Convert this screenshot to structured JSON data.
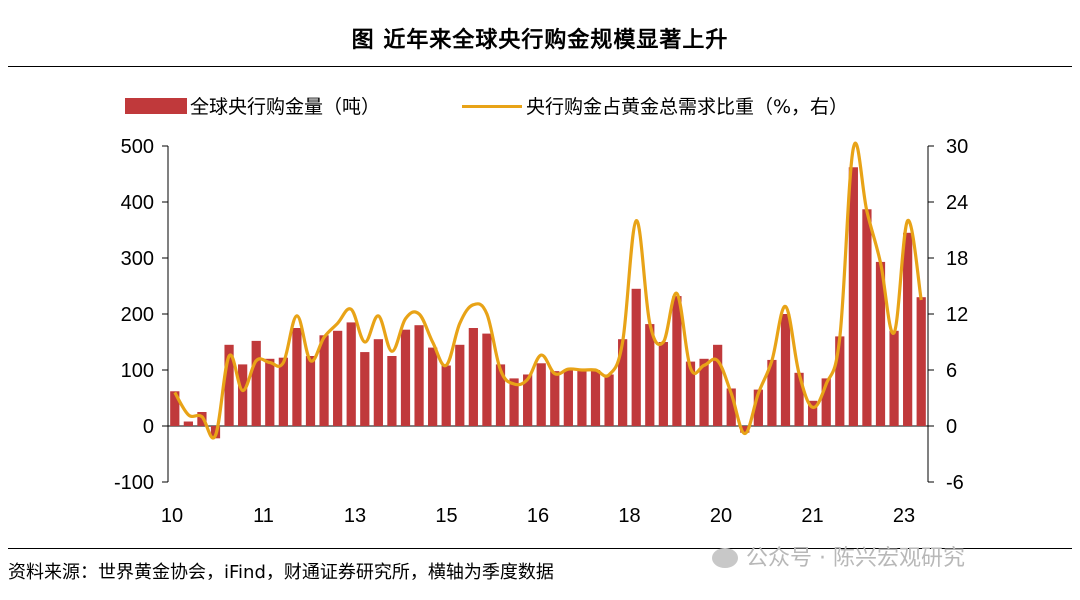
{
  "header": {
    "title": "图  近年来全球央行购金规模显著上升"
  },
  "footer": {
    "source": "资料来源：世界黄金协会，iFind，财通证券研究所，横轴为季度数据",
    "watermark": "公众号 · 陈兴宏观研究"
  },
  "chart_data": {
    "type": "bar",
    "x_tick_labels": [
      "10",
      "11",
      "13",
      "15",
      "16",
      "18",
      "20",
      "21",
      "23"
    ],
    "legend": [
      "全球央行购金量（吨）",
      "央行购金占黄金总需求比重（%，右）"
    ],
    "legend_placement": "top",
    "grid": false,
    "y_left": {
      "ticks": [
        "500",
        "400",
        "300",
        "200",
        "100",
        "0",
        "-100"
      ],
      "range": [
        -100,
        500
      ]
    },
    "y_right": {
      "ticks": [
        "30",
        "24",
        "18",
        "12",
        "6",
        "0",
        "-6"
      ],
      "range": [
        -6,
        30
      ]
    },
    "series": [
      {
        "name": "全球央行购金量（吨）",
        "kind": "bar",
        "axis": "left",
        "values": [
          62,
          8,
          25,
          -22,
          145,
          110,
          152,
          120,
          122,
          175,
          125,
          162,
          170,
          185,
          132,
          155,
          125,
          172,
          180,
          140,
          108,
          145,
          175,
          165,
          110,
          85,
          92,
          112,
          98,
          100,
          102,
          100,
          92,
          155,
          245,
          182,
          150,
          232,
          115,
          120,
          145,
          67,
          -12,
          65,
          118,
          200,
          95,
          45,
          85,
          160,
          462,
          387,
          293,
          170,
          345,
          230
        ]
      },
      {
        "name": "央行购金占黄金总需求比重（%，右）",
        "kind": "line",
        "axis": "right",
        "color": "#E8A317",
        "values": [
          3.6,
          1.2,
          1.0,
          -1.0,
          7.5,
          3.8,
          7.0,
          6.8,
          6.8,
          11.8,
          7.0,
          9.5,
          11.0,
          12.5,
          9.0,
          11.8,
          8.0,
          11.5,
          12.0,
          9.0,
          6.5,
          11.0,
          13.0,
          12.0,
          6.0,
          4.5,
          5.0,
          7.6,
          5.6,
          6.1,
          6.0,
          6.0,
          5.5,
          9.0,
          22.0,
          11.0,
          9.0,
          14.2,
          6.2,
          6.5,
          7.0,
          3.5,
          -0.8,
          3.5,
          7.0,
          12.8,
          5.6,
          2.0,
          4.5,
          9.5,
          29.8,
          23.0,
          17.5,
          10.0,
          22.0,
          13.5
        ]
      }
    ],
    "bar_color": "#C0393B",
    "line_color": "#E8A317"
  }
}
